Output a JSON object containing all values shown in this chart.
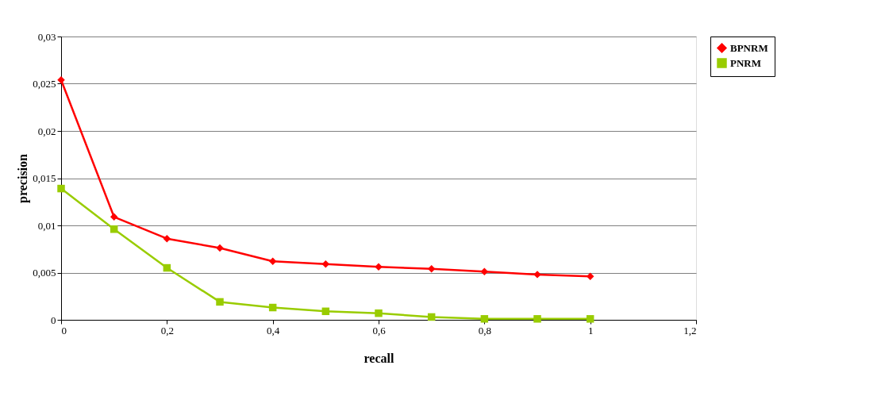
{
  "chart_data": {
    "type": "line",
    "xlabel": "recall",
    "ylabel": "precision",
    "x": [
      0,
      0.1,
      0.2,
      0.3,
      0.4,
      0.5,
      0.6,
      0.7,
      0.8,
      0.9,
      1
    ],
    "series": [
      {
        "name": "BPNRM",
        "color": "#ff0000",
        "marker": "diamond",
        "values": [
          0.0254,
          0.0109,
          0.0086,
          0.0076,
          0.0062,
          0.0059,
          0.0056,
          0.0054,
          0.0051,
          0.0048,
          0.0046
        ]
      },
      {
        "name": "PNRM",
        "color": "#99cc00",
        "marker": "square",
        "values": [
          0.0139,
          0.0096,
          0.0055,
          0.0019,
          0.0013,
          0.0009,
          0.0007,
          0.0003,
          0.0001,
          0.0001,
          0.0001
        ]
      }
    ],
    "xlim": [
      0,
      1.2
    ],
    "xticks": [
      0,
      {
        "value": 0.2,
        "label": "0,2"
      },
      {
        "value": 0.4,
        "label": "0,4"
      },
      {
        "value": 0.6,
        "label": "0,6"
      },
      {
        "value": 0.8,
        "label": "0,8"
      },
      1,
      {
        "value": 1.2,
        "label": "1,2"
      }
    ],
    "ylim": [
      0,
      0.03
    ],
    "yticks": [
      0,
      {
        "value": 0.005,
        "label": "0,005"
      },
      {
        "value": 0.01,
        "label": "0,01"
      },
      {
        "value": 0.015,
        "label": "0,015"
      },
      {
        "value": 0.02,
        "label": "0,02"
      },
      {
        "value": 0.025,
        "label": "0,025"
      },
      {
        "value": 0.03,
        "label": "0,03"
      }
    ],
    "grid": "y",
    "legend": "right",
    "line_style": "solid"
  }
}
